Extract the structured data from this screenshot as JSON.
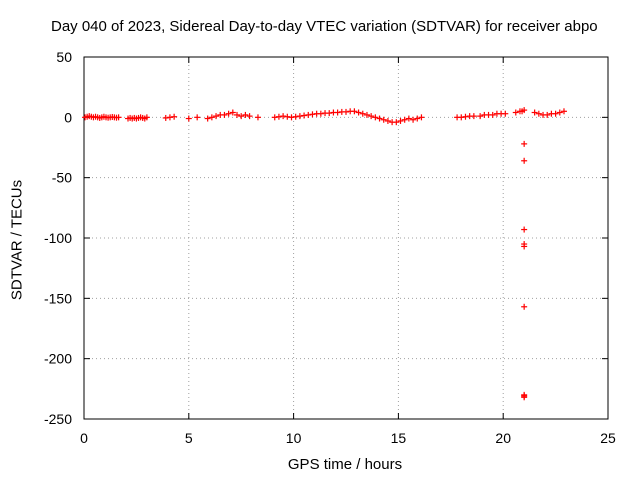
{
  "chart_data": {
    "type": "scatter",
    "title": "Day 040 of 2023, Sidereal Day-to-day VTEC variation (SDTVAR) for receiver abpo",
    "xlabel": "GPS time / hours",
    "ylabel": "SDTVAR / TECUs",
    "xlim": [
      0,
      25
    ],
    "ylim": [
      -250,
      50
    ],
    "xticks": [
      0,
      5,
      10,
      15,
      20,
      25
    ],
    "yticks": [
      50,
      0,
      -50,
      -100,
      -150,
      -200,
      -250
    ],
    "grid": true,
    "marker": "plus",
    "color": "#ff0000",
    "series": [
      {
        "name": "SDTVAR",
        "x": [
          0.05,
          0.15,
          0.25,
          0.35,
          0.45,
          0.55,
          0.65,
          0.75,
          0.85,
          0.95,
          1.05,
          1.15,
          1.25,
          1.35,
          1.45,
          1.55,
          1.65,
          2.1,
          2.2,
          2.3,
          2.4,
          2.5,
          2.6,
          2.7,
          2.8,
          2.9,
          3.0,
          3.9,
          4.1,
          4.3,
          5.0,
          5.4,
          5.9,
          6.1,
          6.3,
          6.5,
          6.7,
          6.9,
          7.1,
          7.3,
          7.5,
          7.7,
          7.9,
          8.3,
          9.1,
          9.3,
          9.5,
          9.7,
          9.9,
          10.1,
          10.3,
          10.5,
          10.7,
          10.9,
          11.1,
          11.3,
          11.5,
          11.7,
          11.9,
          12.1,
          12.3,
          12.5,
          12.7,
          12.9,
          13.1,
          13.3,
          13.5,
          13.7,
          13.9,
          14.1,
          14.3,
          14.5,
          14.7,
          14.9,
          15.1,
          15.3,
          15.5,
          15.7,
          15.9,
          16.1,
          17.8,
          18.0,
          18.2,
          18.4,
          18.6,
          18.9,
          19.1,
          19.3,
          19.5,
          19.7,
          19.9,
          20.1,
          20.6,
          20.8,
          20.9,
          21.0,
          21.5,
          21.7,
          21.9,
          22.1,
          22.3,
          22.5,
          22.7,
          22.9,
          21.0,
          21.0,
          21.0,
          21.0,
          21.0,
          21.0,
          21.0,
          21.0,
          21.0
        ],
        "y": [
          0,
          0.5,
          1,
          0.5,
          0,
          0.5,
          0,
          -0.5,
          0,
          0.5,
          0,
          -0.3,
          0,
          0.3,
          0,
          -0.3,
          0,
          -1,
          -0.5,
          -1,
          -0.5,
          -1,
          -0.5,
          0,
          -0.5,
          -1,
          0,
          -0.5,
          0,
          0.5,
          -1,
          0,
          -1,
          0,
          1,
          2,
          2,
          3,
          4,
          2,
          1,
          2,
          1,
          0,
          0,
          0.5,
          1,
          0.5,
          0,
          0.5,
          1,
          1.5,
          2,
          2.5,
          3,
          3,
          3.5,
          3.5,
          4,
          4,
          4.5,
          4.5,
          5,
          5,
          4,
          3,
          2,
          1,
          0,
          -1,
          -2,
          -3,
          -4,
          -4,
          -3,
          -2,
          -1,
          -2,
          -1,
          0,
          0,
          0,
          0.5,
          1,
          1,
          1,
          2,
          2,
          2,
          3,
          3,
          3,
          4,
          5,
          5,
          6,
          4,
          3,
          2,
          2,
          3,
          3,
          4,
          5,
          -22,
          -36,
          -93,
          -105,
          -107,
          -157,
          -230,
          -232,
          -231
        ]
      }
    ]
  }
}
